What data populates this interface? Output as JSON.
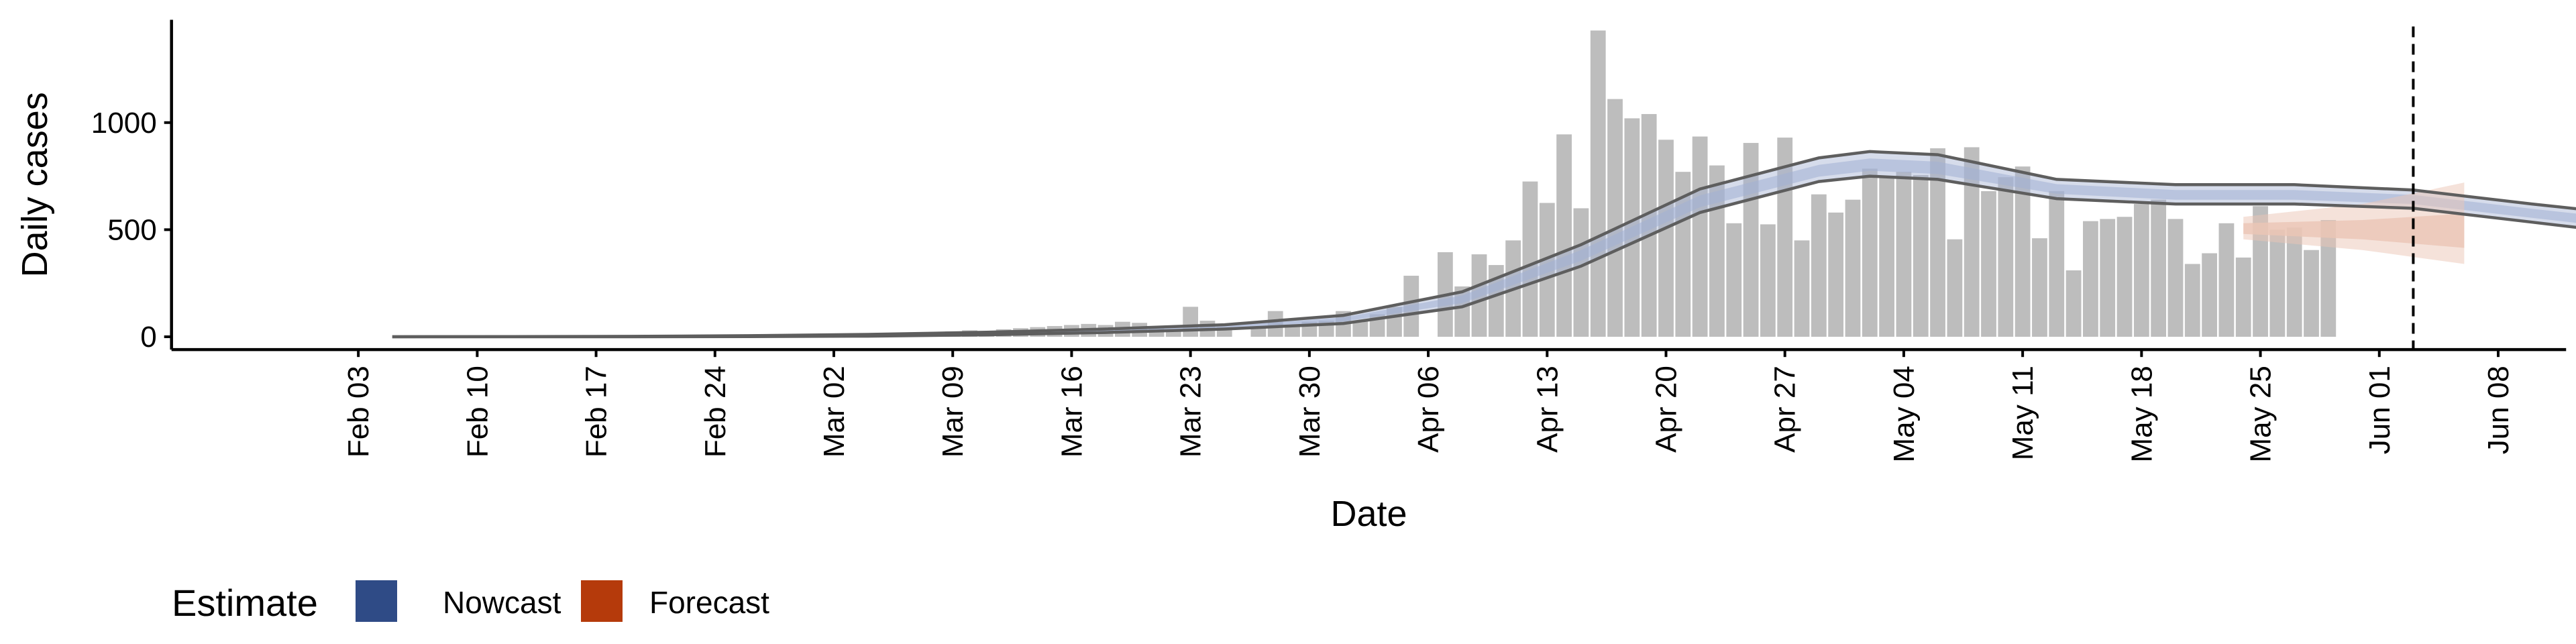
{
  "chart_data": {
    "type": "bar",
    "xlabel": "Date",
    "ylabel": "Daily cases",
    "ylim": [
      -60,
      1480
    ],
    "yticks": [
      0,
      500,
      1000
    ],
    "x_range": [
      "2020-01-23",
      "2020-06-12"
    ],
    "xticks": [
      "Feb 03",
      "Feb 10",
      "Feb 17",
      "Feb 24",
      "Mar 02",
      "Mar 09",
      "Mar 16",
      "Mar 23",
      "Mar 30",
      "Apr 06",
      "Apr 13",
      "Apr 20",
      "Apr 27",
      "May 04",
      "May 11",
      "May 18",
      "May 25",
      "Jun 01",
      "Jun 08"
    ],
    "xtick_dates": [
      "2020-02-03",
      "2020-02-10",
      "2020-02-17",
      "2020-02-24",
      "2020-03-02",
      "2020-03-09",
      "2020-03-16",
      "2020-03-23",
      "2020-03-30",
      "2020-04-06",
      "2020-04-13",
      "2020-04-20",
      "2020-04-27",
      "2020-05-04",
      "2020-05-11",
      "2020-05-18",
      "2020-05-25",
      "2020-06-01",
      "2020-06-08"
    ],
    "reported_cases": {
      "start_date": "2020-02-28",
      "values": [
        3,
        5,
        6,
        8,
        10,
        12,
        14,
        15,
        20,
        18,
        25,
        30,
        25,
        35,
        40,
        45,
        50,
        55,
        60,
        55,
        70,
        65,
        40,
        30,
        140,
        75,
        45,
        0,
        40,
        120,
        55,
        70,
        75,
        120,
        75,
        105,
        140,
        285,
        0,
        395,
        235,
        385,
        335,
        450,
        725,
        625,
        945,
        600,
        1430,
        1110,
        1020,
        1040,
        920,
        770,
        935,
        800,
        530,
        905,
        525,
        930,
        450,
        665,
        580,
        640,
        785,
        745,
        770,
        755,
        880,
        455,
        885,
        680,
        745,
        795,
        460,
        680,
        310,
        540,
        550,
        560,
        620,
        640,
        550,
        340,
        390,
        530,
        370,
        610,
        500,
        510,
        405,
        545
      ]
    },
    "nowcast": {
      "start_date": "2020-02-05",
      "end_date": "2020-05-24",
      "median": [
        [
          0,
          0
        ],
        [
          14,
          1
        ],
        [
          21,
          3
        ],
        [
          28,
          7
        ],
        [
          35,
          15
        ],
        [
          42,
          28
        ],
        [
          49,
          46
        ],
        [
          56,
          80
        ],
        [
          63,
          175
        ],
        [
          70,
          380
        ],
        [
          77,
          630
        ],
        [
          84,
          770
        ],
        [
          87,
          800
        ],
        [
          91,
          785
        ],
        [
          98,
          690
        ],
        [
          105,
          660
        ],
        [
          112,
          660
        ],
        [
          119,
          640
        ],
        [
          126,
          575
        ],
        [
          133,
          515
        ],
        [
          140,
          495
        ],
        [
          147,
          500
        ],
        [
          154,
          505
        ]
      ],
      "lower_90": [
        [
          0,
          0
        ],
        [
          14,
          0
        ],
        [
          21,
          1
        ],
        [
          28,
          3
        ],
        [
          35,
          9
        ],
        [
          42,
          20
        ],
        [
          49,
          36
        ],
        [
          56,
          62
        ],
        [
          63,
          140
        ],
        [
          70,
          330
        ],
        [
          77,
          580
        ],
        [
          84,
          725
        ],
        [
          87,
          750
        ],
        [
          91,
          735
        ],
        [
          98,
          645
        ],
        [
          105,
          620
        ],
        [
          112,
          620
        ],
        [
          119,
          600
        ],
        [
          126,
          535
        ],
        [
          133,
          470
        ],
        [
          140,
          450
        ],
        [
          147,
          450
        ],
        [
          154,
          455
        ]
      ],
      "upper_90": [
        [
          0,
          0
        ],
        [
          14,
          2
        ],
        [
          21,
          5
        ],
        [
          28,
          11
        ],
        [
          35,
          21
        ],
        [
          42,
          36
        ],
        [
          49,
          56
        ],
        [
          56,
          100
        ],
        [
          63,
          210
        ],
        [
          70,
          430
        ],
        [
          77,
          690
        ],
        [
          84,
          835
        ],
        [
          87,
          865
        ],
        [
          91,
          850
        ],
        [
          98,
          735
        ],
        [
          105,
          710
        ],
        [
          112,
          710
        ],
        [
          119,
          685
        ],
        [
          126,
          620
        ],
        [
          133,
          560
        ],
        [
          140,
          540
        ],
        [
          147,
          550
        ],
        [
          154,
          560
        ]
      ]
    },
    "forecast": {
      "start_date": "2020-05-24",
      "end_date": "2020-06-06",
      "median": [
        [
          0,
          505
        ],
        [
          7,
          500
        ],
        [
          13,
          495
        ]
      ],
      "lower_50": [
        [
          0,
          480
        ],
        [
          7,
          455
        ],
        [
          13,
          415
        ]
      ],
      "upper_50": [
        [
          0,
          530
        ],
        [
          7,
          545
        ],
        [
          13,
          575
        ]
      ],
      "lower_90": [
        [
          0,
          455
        ],
        [
          7,
          405
        ],
        [
          13,
          340
        ]
      ],
      "upper_90": [
        [
          0,
          560
        ],
        [
          7,
          620
        ],
        [
          13,
          720
        ]
      ]
    },
    "vline_date": "2020-06-03",
    "legend": {
      "title": "Estimate",
      "position": "bottom-left",
      "items": [
        {
          "label": "Nowcast",
          "color": "#2f4b86"
        },
        {
          "label": "Forecast",
          "color": "#b53a0b"
        }
      ]
    },
    "colors": {
      "bars": "#bdbdbd",
      "nowcast_band": "#a3b1d3",
      "nowcast_outline": "#5e5e5e",
      "forecast_band": "#ebc5b5",
      "vline": "#000000"
    }
  }
}
